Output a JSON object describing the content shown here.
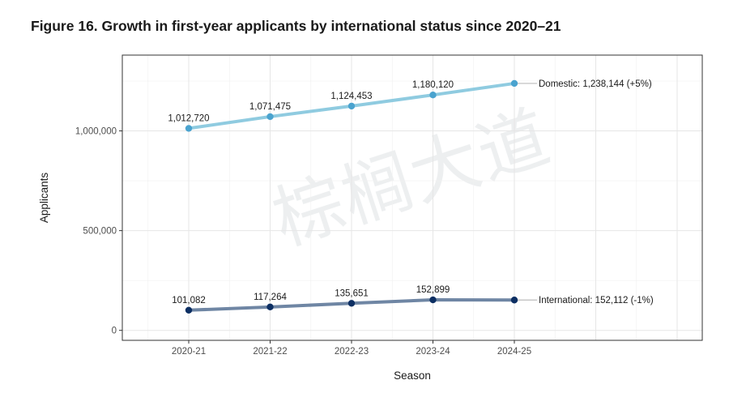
{
  "figure_title": "Figure 16. Growth in first-year applicants by international status since 2020–21",
  "watermark_text": "棕榈大道",
  "colors": {
    "domestic_line": "#8fcbe0",
    "domestic_point": "#4aa3cf",
    "international_line": "#6f86a4",
    "international_point": "#0d2f63",
    "grid": "#e6e6e6",
    "panel_border": "#333333"
  },
  "chart_data": {
    "type": "line",
    "xlabel": "Season",
    "ylabel": "Applicants",
    "categories": [
      "2020-21",
      "2021-22",
      "2022-23",
      "2023-24",
      "2024-25"
    ],
    "ylim": [
      -50000,
      1380000
    ],
    "yticks": [
      0,
      500000,
      1000000
    ],
    "ytick_labels": [
      "0",
      "500,000",
      "1,000,000"
    ],
    "grid": true,
    "series": [
      {
        "key": "domestic",
        "values": [
          1012720,
          1071475,
          1124453,
          1180120,
          1238144
        ],
        "point_labels": [
          "1,012,720",
          "1,071,475",
          "1,124,453",
          "1,180,120"
        ],
        "end_label": "Domestic: 1,238,144 (+5%)"
      },
      {
        "key": "international",
        "values": [
          101082,
          117264,
          135651,
          152899,
          152112
        ],
        "point_labels": [
          "101,082",
          "117,264",
          "135,651",
          "152,899"
        ],
        "end_label": "International: 152,112 (-1%)"
      }
    ]
  }
}
